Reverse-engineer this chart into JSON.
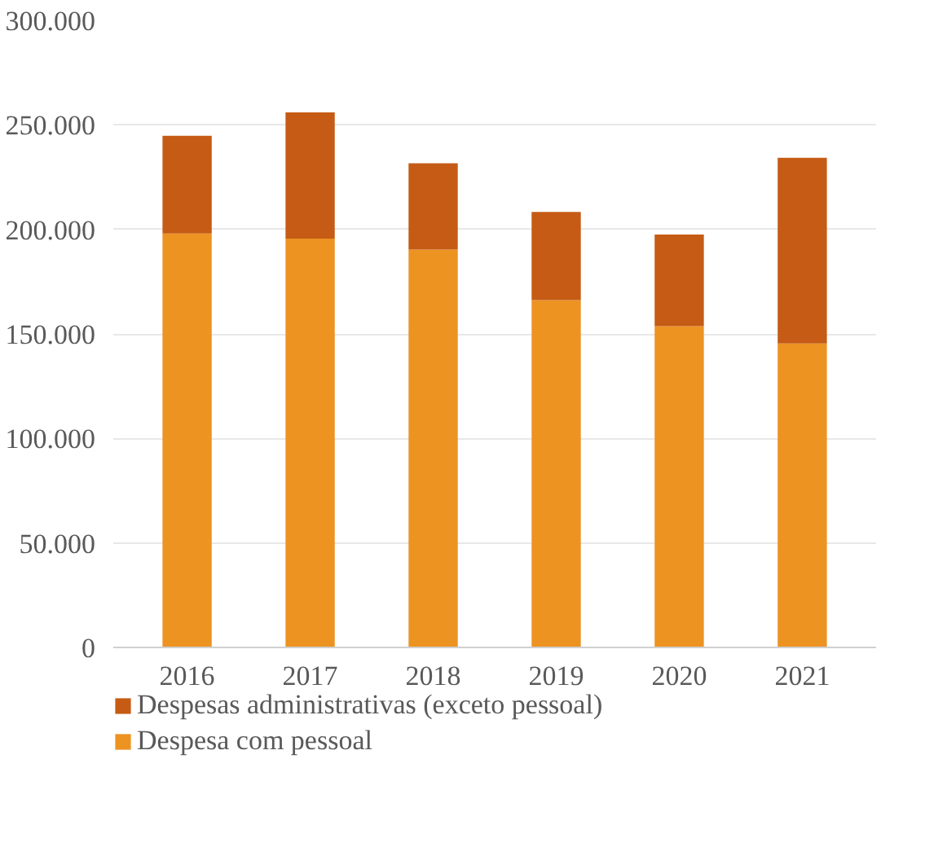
{
  "chart_data": {
    "type": "bar",
    "stacked": true,
    "categories": [
      "2016",
      "2017",
      "2018",
      "2019",
      "2020",
      "2021"
    ],
    "series": [
      {
        "name": "Despesa com pessoal",
        "color": "#ec9322",
        "values": [
          198000,
          195600,
          190300,
          166200,
          153700,
          145400
        ]
      },
      {
        "name": "Despesas administrativas (exceto pessoal)",
        "color": "#c55b14",
        "values": [
          46800,
          60400,
          41300,
          42100,
          43800,
          88900
        ]
      }
    ],
    "ylim": [
      0,
      300000
    ],
    "yticks": [
      {
        "value": 0,
        "label": "0"
      },
      {
        "value": 50000,
        "label": "50.000"
      },
      {
        "value": 100000,
        "label": "100.000"
      },
      {
        "value": 150000,
        "label": "150.000"
      },
      {
        "value": 200000,
        "label": "200.000"
      },
      {
        "value": 250000,
        "label": "250.000"
      },
      {
        "value": 300000,
        "label": "300.000"
      }
    ],
    "grid": "y",
    "legend": "bottom"
  }
}
